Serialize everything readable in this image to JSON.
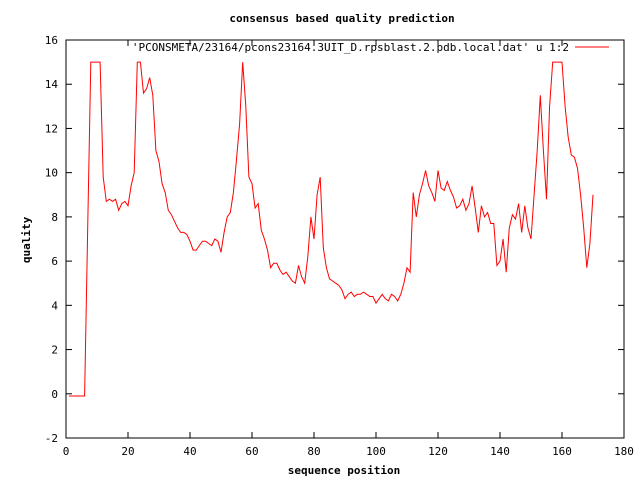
{
  "chart_data": {
    "type": "line",
    "title": "consensus based quality prediction",
    "xlabel": "sequence position",
    "ylabel": "quality",
    "xlim": [
      0,
      180
    ],
    "ylim": [
      -2,
      16
    ],
    "xticks": [
      0,
      20,
      40,
      60,
      80,
      100,
      120,
      140,
      160,
      180
    ],
    "yticks": [
      -2,
      0,
      2,
      4,
      6,
      8,
      10,
      12,
      14,
      16
    ],
    "grid": false,
    "legend_position": "top-right",
    "series": [
      {
        "name": "'PCONSMETA/23164/pcons23164.3UIT_D.rpsblast.2.pdb.local.dat' u 1:2",
        "color": "#ff0000",
        "x": [
          1,
          2,
          3,
          4,
          5,
          6,
          7,
          8,
          9,
          10,
          11,
          12,
          13,
          14,
          15,
          16,
          17,
          18,
          19,
          20,
          21,
          22,
          23,
          24,
          25,
          26,
          27,
          28,
          29,
          30,
          31,
          32,
          33,
          34,
          35,
          36,
          37,
          38,
          39,
          40,
          41,
          42,
          43,
          44,
          45,
          46,
          47,
          48,
          49,
          50,
          51,
          52,
          53,
          54,
          55,
          56,
          57,
          58,
          59,
          60,
          61,
          62,
          63,
          64,
          65,
          66,
          67,
          68,
          69,
          70,
          71,
          72,
          73,
          74,
          75,
          76,
          77,
          78,
          79,
          80,
          81,
          82,
          83,
          84,
          85,
          86,
          87,
          88,
          89,
          90,
          91,
          92,
          93,
          94,
          95,
          96,
          97,
          98,
          99,
          100,
          101,
          102,
          103,
          104,
          105,
          106,
          107,
          108,
          109,
          110,
          111,
          112,
          113,
          114,
          115,
          116,
          117,
          118,
          119,
          120,
          121,
          122,
          123,
          124,
          125,
          126,
          127,
          128,
          129,
          130,
          131,
          132,
          133,
          134,
          135,
          136,
          137,
          138,
          139,
          140,
          141,
          142,
          143,
          144,
          145,
          146,
          147,
          148,
          149,
          150,
          151,
          152,
          153,
          154,
          155,
          156,
          157,
          158,
          159,
          160,
          161,
          162,
          163,
          164,
          165,
          166,
          167,
          168,
          169,
          170
        ],
        "y": [
          -0.1,
          -0.1,
          -0.1,
          -0.1,
          -0.1,
          -0.1,
          7.5,
          15,
          15,
          15,
          15,
          9.8,
          8.7,
          8.8,
          8.7,
          8.8,
          8.3,
          8.6,
          8.7,
          8.5,
          9.4,
          10,
          15,
          15,
          13.6,
          13.8,
          14.3,
          13.5,
          11,
          10.5,
          9.5,
          9.1,
          8.3,
          8.1,
          7.8,
          7.5,
          7.3,
          7.3,
          7.2,
          6.9,
          6.5,
          6.5,
          6.7,
          6.9,
          6.9,
          6.8,
          6.7,
          7.0,
          6.9,
          6.4,
          7.3,
          8.0,
          8.2,
          9.1,
          10.6,
          12.2,
          15,
          13.0,
          9.8,
          9.5,
          8.4,
          8.6,
          7.4,
          7.0,
          6.5,
          5.7,
          5.9,
          5.9,
          5.6,
          5.4,
          5.5,
          5.3,
          5.1,
          5.0,
          5.8,
          5.3,
          5.0,
          6.2,
          8.0,
          7.0,
          9.0,
          9.8,
          6.6,
          5.7,
          5.2,
          5.1,
          5.0,
          4.9,
          4.7,
          4.3,
          4.5,
          4.6,
          4.4,
          4.5,
          4.5,
          4.6,
          4.5,
          4.4,
          4.4,
          4.1,
          4.3,
          4.5,
          4.3,
          4.2,
          4.5,
          4.4,
          4.2,
          4.5,
          5.0,
          5.7,
          5.5,
          9.1,
          8.0,
          9.0,
          9.5,
          10.1,
          9.4,
          9.1,
          8.7,
          10.1,
          9.3,
          9.2,
          9.6,
          9.2,
          8.9,
          8.4,
          8.5,
          8.8,
          8.3,
          8.6,
          9.4,
          8.4,
          7.3,
          8.5,
          8.0,
          8.2,
          7.7,
          7.7,
          5.8,
          6.0,
          7.0,
          5.5,
          7.5,
          8.1,
          7.9,
          8.6,
          7.3,
          8.5,
          7.5,
          7.0,
          9.0,
          11.0,
          13.5,
          11.0,
          8.8,
          13.0,
          15,
          15,
          15,
          15,
          13.0,
          11.6,
          10.8,
          10.7,
          10.2,
          9.0,
          7.5,
          5.7,
          6.8,
          9.0
        ]
      }
    ]
  }
}
